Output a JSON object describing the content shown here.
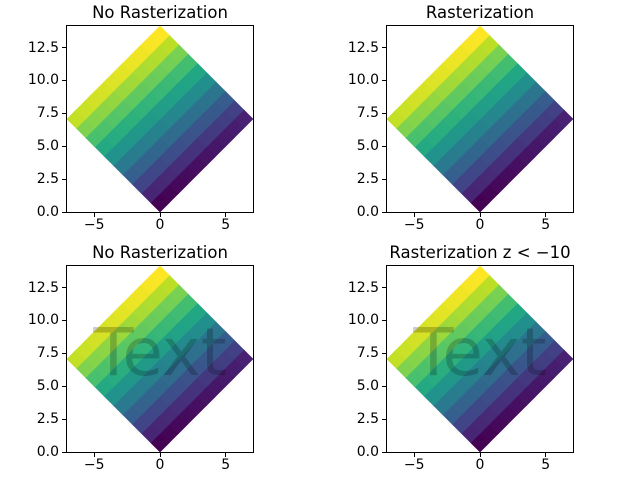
{
  "figure": {
    "background_color": "#ffffff",
    "grid_rows": 2,
    "grid_cols": 2
  },
  "chart_data": [
    {
      "type": "heatmap",
      "style": "pcolormesh rotated 45deg (diamond)",
      "title": "No Rasterization",
      "rasterized": false,
      "watermark": null,
      "colormap": "viridis",
      "vmin": 0,
      "vmax": 99,
      "rotation_deg": 45,
      "xlim": [
        -7.0710678,
        7.0710678
      ],
      "ylim": [
        0,
        14.1421356
      ],
      "xticks": {
        "values": [
          -5,
          0,
          5
        ],
        "labels": [
          "−5",
          "0",
          "5"
        ]
      },
      "yticks": {
        "values": [
          0,
          2.5,
          5,
          7.5,
          10,
          12.5
        ],
        "labels": [
          "0.0",
          "2.5",
          "5.0",
          "7.5",
          "10.0",
          "12.5"
        ]
      },
      "values": [
        [
          0,
          1,
          2,
          3,
          4,
          5,
          6,
          7,
          8,
          9
        ],
        [
          10,
          11,
          12,
          13,
          14,
          15,
          16,
          17,
          18,
          19
        ],
        [
          20,
          21,
          22,
          23,
          24,
          25,
          26,
          27,
          28,
          29
        ],
        [
          30,
          31,
          32,
          33,
          34,
          35,
          36,
          37,
          38,
          39
        ],
        [
          40,
          41,
          42,
          43,
          44,
          45,
          46,
          47,
          48,
          49
        ],
        [
          50,
          51,
          52,
          53,
          54,
          55,
          56,
          57,
          58,
          59
        ],
        [
          60,
          61,
          62,
          63,
          64,
          65,
          66,
          67,
          68,
          69
        ],
        [
          70,
          71,
          72,
          73,
          74,
          75,
          76,
          77,
          78,
          79
        ],
        [
          80,
          81,
          82,
          83,
          84,
          85,
          86,
          87,
          88,
          89
        ],
        [
          90,
          91,
          92,
          93,
          94,
          95,
          96,
          97,
          98,
          99
        ]
      ]
    },
    {
      "type": "heatmap",
      "style": "pcolormesh rotated 45deg (diamond)",
      "title": "Rasterization",
      "rasterized": true,
      "watermark": null,
      "colormap": "viridis",
      "vmin": 0,
      "vmax": 99,
      "rotation_deg": 45,
      "xlim": [
        -7.0710678,
        7.0710678
      ],
      "ylim": [
        0,
        14.1421356
      ],
      "xticks": {
        "values": [
          -5,
          0,
          5
        ],
        "labels": [
          "−5",
          "0",
          "5"
        ]
      },
      "yticks": {
        "values": [
          0,
          2.5,
          5,
          7.5,
          10,
          12.5
        ],
        "labels": [
          "0.0",
          "2.5",
          "5.0",
          "7.5",
          "10.0",
          "12.5"
        ]
      },
      "values": [
        [
          0,
          1,
          2,
          3,
          4,
          5,
          6,
          7,
          8,
          9
        ],
        [
          10,
          11,
          12,
          13,
          14,
          15,
          16,
          17,
          18,
          19
        ],
        [
          20,
          21,
          22,
          23,
          24,
          25,
          26,
          27,
          28,
          29
        ],
        [
          30,
          31,
          32,
          33,
          34,
          35,
          36,
          37,
          38,
          39
        ],
        [
          40,
          41,
          42,
          43,
          44,
          45,
          46,
          47,
          48,
          49
        ],
        [
          50,
          51,
          52,
          53,
          54,
          55,
          56,
          57,
          58,
          59
        ],
        [
          60,
          61,
          62,
          63,
          64,
          65,
          66,
          67,
          68,
          69
        ],
        [
          70,
          71,
          72,
          73,
          74,
          75,
          76,
          77,
          78,
          79
        ],
        [
          80,
          81,
          82,
          83,
          84,
          85,
          86,
          87,
          88,
          89
        ],
        [
          90,
          91,
          92,
          93,
          94,
          95,
          96,
          97,
          98,
          99
        ]
      ]
    },
    {
      "type": "heatmap",
      "style": "pcolormesh rotated 45deg (diamond)",
      "title": "No Rasterization",
      "rasterized": false,
      "watermark": {
        "text": "Text",
        "alpha": 0.2
      },
      "colormap": "viridis",
      "vmin": 0,
      "vmax": 99,
      "rotation_deg": 45,
      "xlim": [
        -7.0710678,
        7.0710678
      ],
      "ylim": [
        0,
        14.1421356
      ],
      "xticks": {
        "values": [
          -5,
          0,
          5
        ],
        "labels": [
          "−5",
          "0",
          "5"
        ]
      },
      "yticks": {
        "values": [
          0,
          2.5,
          5,
          7.5,
          10,
          12.5
        ],
        "labels": [
          "0.0",
          "2.5",
          "5.0",
          "7.5",
          "10.0",
          "12.5"
        ]
      },
      "values": [
        [
          0,
          1,
          2,
          3,
          4,
          5,
          6,
          7,
          8,
          9
        ],
        [
          10,
          11,
          12,
          13,
          14,
          15,
          16,
          17,
          18,
          19
        ],
        [
          20,
          21,
          22,
          23,
          24,
          25,
          26,
          27,
          28,
          29
        ],
        [
          30,
          31,
          32,
          33,
          34,
          35,
          36,
          37,
          38,
          39
        ],
        [
          40,
          41,
          42,
          43,
          44,
          45,
          46,
          47,
          48,
          49
        ],
        [
          50,
          51,
          52,
          53,
          54,
          55,
          56,
          57,
          58,
          59
        ],
        [
          60,
          61,
          62,
          63,
          64,
          65,
          66,
          67,
          68,
          69
        ],
        [
          70,
          71,
          72,
          73,
          74,
          75,
          76,
          77,
          78,
          79
        ],
        [
          80,
          81,
          82,
          83,
          84,
          85,
          86,
          87,
          88,
          89
        ],
        [
          90,
          91,
          92,
          93,
          94,
          95,
          96,
          97,
          98,
          99
        ]
      ]
    },
    {
      "type": "heatmap",
      "style": "pcolormesh rotated 45deg (diamond)",
      "title": "Rasterization z < −10",
      "rasterized": true,
      "watermark": {
        "text": "Text",
        "alpha": 0.2
      },
      "colormap": "viridis",
      "vmin": 0,
      "vmax": 99,
      "rotation_deg": 45,
      "xlim": [
        -7.0710678,
        7.0710678
      ],
      "ylim": [
        0,
        14.1421356
      ],
      "xticks": {
        "values": [
          -5,
          0,
          5
        ],
        "labels": [
          "−5",
          "0",
          "5"
        ]
      },
      "yticks": {
        "values": [
          0,
          2.5,
          5,
          7.5,
          10,
          12.5
        ],
        "labels": [
          "0.0",
          "2.5",
          "5.0",
          "7.5",
          "10.0",
          "12.5"
        ]
      },
      "values": [
        [
          0,
          1,
          2,
          3,
          4,
          5,
          6,
          7,
          8,
          9
        ],
        [
          10,
          11,
          12,
          13,
          14,
          15,
          16,
          17,
          18,
          19
        ],
        [
          20,
          21,
          22,
          23,
          24,
          25,
          26,
          27,
          28,
          29
        ],
        [
          30,
          31,
          32,
          33,
          34,
          35,
          36,
          37,
          38,
          39
        ],
        [
          40,
          41,
          42,
          43,
          44,
          45,
          46,
          47,
          48,
          49
        ],
        [
          50,
          51,
          52,
          53,
          54,
          55,
          56,
          57,
          58,
          59
        ],
        [
          60,
          61,
          62,
          63,
          64,
          65,
          66,
          67,
          68,
          69
        ],
        [
          70,
          71,
          72,
          73,
          74,
          75,
          76,
          77,
          78,
          79
        ],
        [
          80,
          81,
          82,
          83,
          84,
          85,
          86,
          87,
          88,
          89
        ],
        [
          90,
          91,
          92,
          93,
          94,
          95,
          96,
          97,
          98,
          99
        ]
      ]
    }
  ],
  "colors": {
    "spine": "#000000",
    "tick": "#000000",
    "text": "#000000",
    "viridis_anchors": [
      "#440154",
      "#482475",
      "#414487",
      "#355f8d",
      "#2a788e",
      "#21918c",
      "#22a884",
      "#44bf70",
      "#7ad151",
      "#bddf26",
      "#fde725"
    ]
  }
}
